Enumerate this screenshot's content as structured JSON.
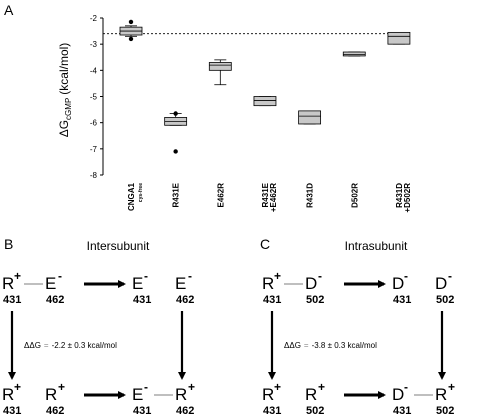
{
  "panels": {
    "a": "A",
    "b": "B",
    "c": "C"
  },
  "chart_data": {
    "type": "box",
    "ylabel_main": "ΔG",
    "ylabel_sub": "cGMP",
    "ylabel_unit": "(kcal/mol)",
    "ylim": [
      -8,
      -2
    ],
    "yticks": [
      -2,
      -3,
      -4,
      -5,
      -6,
      -7,
      -8
    ],
    "reference_line": {
      "y": -2.6,
      "style": "dashed"
    },
    "categories": [
      {
        "label": "CNGA1",
        "sub": "cys-free"
      },
      {
        "label": "R431E",
        "sub": ""
      },
      {
        "label": "E462R",
        "sub": ""
      },
      {
        "label": "R431E",
        "sub": "+E462R"
      },
      {
        "label": "R431D",
        "sub": ""
      },
      {
        "label": "D502R",
        "sub": ""
      },
      {
        "label": "R431D",
        "sub": "+D502R"
      }
    ],
    "boxes": [
      {
        "q1": -2.65,
        "median": -2.5,
        "q3": -2.35,
        "whisker_low": -2.7,
        "whisker_high": -2.3,
        "outliers": [
          -2.15,
          -2.8
        ]
      },
      {
        "q1": -6.1,
        "median": -5.95,
        "q3": -5.8,
        "whisker_low": -6.1,
        "whisker_high": -5.65,
        "outliers": [
          -5.65,
          -7.1
        ]
      },
      {
        "q1": -4.0,
        "median": -3.8,
        "q3": -3.7,
        "whisker_low": -4.55,
        "whisker_high": -3.6,
        "outliers": []
      },
      {
        "q1": -5.35,
        "median": -5.15,
        "q3": -5.0,
        "whisker_low": -5.35,
        "whisker_high": -5.0,
        "outliers": []
      },
      {
        "q1": -6.05,
        "median": -5.75,
        "q3": -5.55,
        "whisker_low": -6.05,
        "whisker_high": -5.55,
        "outliers": []
      },
      {
        "q1": -3.45,
        "median": -3.4,
        "q3": -3.3,
        "whisker_low": -3.45,
        "whisker_high": -3.3,
        "outliers": []
      },
      {
        "q1": -3.0,
        "median": -2.7,
        "q3": -2.55,
        "whisker_low": -3.0,
        "whisker_high": -2.55,
        "outliers": []
      }
    ]
  },
  "scheme_b": {
    "title": "Intersubunit",
    "tl": {
      "a": "R",
      "as": "+",
      "an": "431",
      "b": "E",
      "bs": "-",
      "bn": "462"
    },
    "tr": {
      "a": "E",
      "as": "-",
      "an": "431",
      "b": "E",
      "bs": "-",
      "bn": "462"
    },
    "bl": {
      "a": "R",
      "as": "+",
      "an": "431",
      "b": "R",
      "bs": "+",
      "bn": "462"
    },
    "br": {
      "a": "E",
      "as": "-",
      "an": "431",
      "b": "R",
      "bs": "+",
      "bn": "462"
    },
    "ddg_prefix": "ΔΔG",
    "ddg_eq": "=",
    "ddg_value": "-2.2 ± 0.3 kcal/mol"
  },
  "scheme_c": {
    "title": "Intrasubunit",
    "tl": {
      "a": "R",
      "as": "+",
      "an": "431",
      "b": "D",
      "bs": "-",
      "bn": "502"
    },
    "tr": {
      "a": "D",
      "as": "-",
      "an": "431",
      "b": "D",
      "bs": "-",
      "bn": "502"
    },
    "bl": {
      "a": "R",
      "as": "+",
      "an": "431",
      "b": "R",
      "bs": "+",
      "bn": "502"
    },
    "br": {
      "a": "D",
      "as": "-",
      "an": "431",
      "b": "R",
      "bs": "+",
      "bn": "502"
    },
    "ddg_prefix": "ΔΔG",
    "ddg_eq": "=",
    "ddg_value": "-3.8 ± 0.3 kcal/mol"
  }
}
